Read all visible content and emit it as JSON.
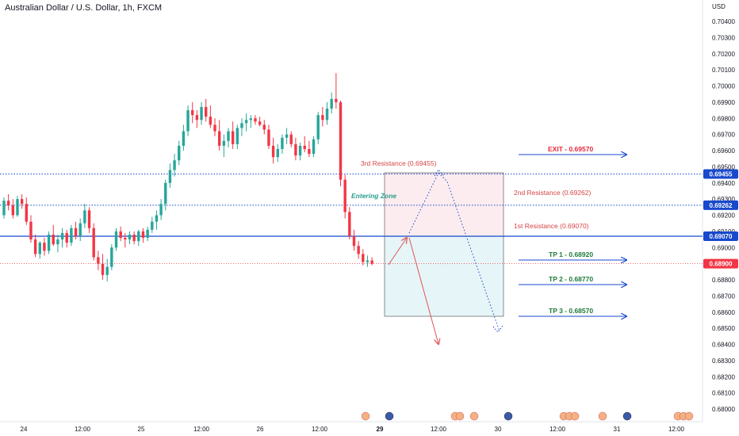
{
  "header": {
    "symbol_title": "Australian Dollar / U.S. Dollar, 1h, FXCM"
  },
  "price_axis": {
    "unit": "USD",
    "ticks": [
      "0.70400",
      "0.70300",
      "0.70200",
      "0.70100",
      "0.70000",
      "0.69900",
      "0.69800",
      "0.69700",
      "0.69600",
      "0.69500",
      "0.69400",
      "0.69300",
      "0.69200",
      "0.69100",
      "0.69000",
      "0.68900",
      "0.68800",
      "0.68700",
      "0.68600",
      "0.68500",
      "0.68400",
      "0.68300",
      "0.68200",
      "0.68100",
      "0.68000"
    ]
  },
  "time_axis": {
    "labels": [
      "24",
      "12:00",
      "25",
      "12:00",
      "26",
      "12:00",
      "29",
      "12:00",
      "30",
      "12:00",
      "31",
      "12:00"
    ]
  },
  "price_tags": [
    {
      "label": "0.69455",
      "value": 0.69455,
      "color": "#1848cc"
    },
    {
      "label": "0.69262",
      "value": 0.69262,
      "color": "#1848cc"
    },
    {
      "label": "0.69070",
      "value": 0.6907,
      "color": "#1848cc"
    },
    {
      "label": "0.68900",
      "value": 0.689,
      "color": "#f23645"
    }
  ],
  "annotations": {
    "third_resistance": "3rd Resistance (0.69455)",
    "second_resistance": "2nd Resistance (0.69262)",
    "first_resistance": "1st Resistance (0.69070)",
    "entering_zone": "Entering Zone",
    "exit": "EXIT - 0.69570",
    "tp1": "TP 1 - 0.68920",
    "tp2": "TP 2 - 0.68770",
    "tp3": "TP 3 - 0.68570"
  },
  "colors": {
    "bull": "#26a69a",
    "bear": "#f23645",
    "line_blue": "#1848cc",
    "exit_red": "#e5283a",
    "tp_green": "#1f7a3a",
    "annotation_red": "#d64545",
    "entering_zone_teal": "#2a9d8f",
    "current_price_line": "#f23645"
  },
  "chart_data": {
    "type": "candlestick",
    "symbol": "Australian Dollar / U.S. Dollar",
    "timeframe": "1h",
    "y_unit": "USD",
    "ylim": [
      0.6796,
      0.705
    ],
    "horizontal_levels": [
      {
        "label": "3rd Resistance",
        "value": 0.69455,
        "style": "dotted"
      },
      {
        "label": "2nd Resistance",
        "value": 0.69262,
        "style": "dotted"
      },
      {
        "label": "1st Resistance",
        "value": 0.6907,
        "style": "solid"
      },
      {
        "label": "Current",
        "value": 0.689,
        "style": "dotted"
      }
    ],
    "targets": [
      {
        "label": "EXIT",
        "value": 0.6957
      },
      {
        "label": "TP 1",
        "value": 0.6892
      },
      {
        "label": "TP 2",
        "value": 0.6877
      },
      {
        "label": "TP 3",
        "value": 0.6857
      }
    ],
    "ohlc": [
      [
        0.692,
        0.6931,
        0.6918,
        0.6929
      ],
      [
        0.6929,
        0.6933,
        0.6923,
        0.6926
      ],
      [
        0.6926,
        0.693,
        0.6918,
        0.692
      ],
      [
        0.692,
        0.6932,
        0.6919,
        0.693
      ],
      [
        0.693,
        0.6933,
        0.6924,
        0.6927
      ],
      [
        0.6927,
        0.6931,
        0.6914,
        0.6916
      ],
      [
        0.6916,
        0.692,
        0.6903,
        0.6905
      ],
      [
        0.6905,
        0.6908,
        0.6894,
        0.6896
      ],
      [
        0.6896,
        0.6904,
        0.6893,
        0.6903
      ],
      [
        0.6903,
        0.6906,
        0.6895,
        0.6898
      ],
      [
        0.6898,
        0.691,
        0.6896,
        0.6908
      ],
      [
        0.6908,
        0.6914,
        0.6901,
        0.6902
      ],
      [
        0.6902,
        0.6908,
        0.6897,
        0.6905
      ],
      [
        0.6905,
        0.6912,
        0.69,
        0.6909
      ],
      [
        0.6909,
        0.6911,
        0.69,
        0.6903
      ],
      [
        0.6903,
        0.6914,
        0.6901,
        0.6912
      ],
      [
        0.6912,
        0.6916,
        0.6905,
        0.6907
      ],
      [
        0.6907,
        0.6918,
        0.6904,
        0.6915
      ],
      [
        0.6915,
        0.6927,
        0.6912,
        0.6923
      ],
      [
        0.6923,
        0.6925,
        0.6909,
        0.6912
      ],
      [
        0.6912,
        0.6915,
        0.6892,
        0.6894
      ],
      [
        0.6894,
        0.6898,
        0.6886,
        0.689
      ],
      [
        0.689,
        0.6896,
        0.688,
        0.6883
      ],
      [
        0.6883,
        0.6893,
        0.6879,
        0.6888
      ],
      [
        0.6888,
        0.6902,
        0.6886,
        0.69
      ],
      [
        0.69,
        0.6912,
        0.6898,
        0.691
      ],
      [
        0.691,
        0.6913,
        0.6904,
        0.6906
      ],
      [
        0.6906,
        0.6909,
        0.69,
        0.6905
      ],
      [
        0.6905,
        0.691,
        0.6902,
        0.6908
      ],
      [
        0.6908,
        0.691,
        0.6902,
        0.6904
      ],
      [
        0.6904,
        0.6911,
        0.6901,
        0.691
      ],
      [
        0.691,
        0.6912,
        0.6903,
        0.6906
      ],
      [
        0.6906,
        0.6913,
        0.6904,
        0.6911
      ],
      [
        0.6911,
        0.6919,
        0.6909,
        0.6916
      ],
      [
        0.6916,
        0.6923,
        0.6911,
        0.692
      ],
      [
        0.692,
        0.693,
        0.6917,
        0.6927
      ],
      [
        0.6927,
        0.6942,
        0.6923,
        0.694
      ],
      [
        0.694,
        0.6952,
        0.6937,
        0.6948
      ],
      [
        0.6948,
        0.6958,
        0.6944,
        0.6954
      ],
      [
        0.6954,
        0.6966,
        0.6951,
        0.6963
      ],
      [
        0.6963,
        0.6976,
        0.696,
        0.6972
      ],
      [
        0.6972,
        0.6988,
        0.6969,
        0.6985
      ],
      [
        0.6985,
        0.699,
        0.6977,
        0.6982
      ],
      [
        0.6982,
        0.6985,
        0.6974,
        0.6979
      ],
      [
        0.6979,
        0.699,
        0.6976,
        0.6987
      ],
      [
        0.6987,
        0.6992,
        0.6978,
        0.6981
      ],
      [
        0.6981,
        0.6988,
        0.6974,
        0.6976
      ],
      [
        0.6976,
        0.698,
        0.6969,
        0.6972
      ],
      [
        0.6972,
        0.6979,
        0.696,
        0.6963
      ],
      [
        0.6963,
        0.697,
        0.6956,
        0.6966
      ],
      [
        0.6966,
        0.6974,
        0.6962,
        0.6972
      ],
      [
        0.6972,
        0.6978,
        0.6961,
        0.6964
      ],
      [
        0.6964,
        0.6976,
        0.6961,
        0.6974
      ],
      [
        0.6974,
        0.698,
        0.6969,
        0.6977
      ],
      [
        0.6977,
        0.6983,
        0.6972,
        0.6979
      ],
      [
        0.6979,
        0.6982,
        0.6974,
        0.698
      ],
      [
        0.698,
        0.6982,
        0.6976,
        0.6978
      ],
      [
        0.6978,
        0.6981,
        0.6975,
        0.6976
      ],
      [
        0.6976,
        0.6979,
        0.697,
        0.6973
      ],
      [
        0.6973,
        0.6976,
        0.6961,
        0.6963
      ],
      [
        0.6963,
        0.6968,
        0.6952,
        0.6956
      ],
      [
        0.6956,
        0.6964,
        0.6953,
        0.6961
      ],
      [
        0.6961,
        0.697,
        0.6958,
        0.6968
      ],
      [
        0.6968,
        0.6974,
        0.6964,
        0.697
      ],
      [
        0.697,
        0.6972,
        0.6962,
        0.6964
      ],
      [
        0.6964,
        0.6968,
        0.6954,
        0.6957
      ],
      [
        0.6957,
        0.6965,
        0.6954,
        0.6963
      ],
      [
        0.6963,
        0.6969,
        0.6959,
        0.6961
      ],
      [
        0.6961,
        0.6966,
        0.6956,
        0.6958
      ],
      [
        0.6958,
        0.6969,
        0.6956,
        0.6967
      ],
      [
        0.6967,
        0.6984,
        0.6964,
        0.6982
      ],
      [
        0.6982,
        0.6987,
        0.6975,
        0.6979
      ],
      [
        0.6979,
        0.699,
        0.6976,
        0.6986
      ],
      [
        0.6986,
        0.6996,
        0.6983,
        0.6992
      ],
      [
        0.6992,
        0.7008,
        0.6986,
        0.699
      ],
      [
        0.699,
        0.6991,
        0.6938,
        0.6942
      ],
      [
        0.6942,
        0.6945,
        0.6918,
        0.6922
      ],
      [
        0.6922,
        0.6925,
        0.6905,
        0.6907
      ],
      [
        0.6907,
        0.6911,
        0.6898,
        0.6901
      ],
      [
        0.6901,
        0.6904,
        0.6893,
        0.6896
      ],
      [
        0.6896,
        0.6899,
        0.6889,
        0.6891
      ],
      [
        0.6891,
        0.6895,
        0.6888,
        0.6892
      ],
      [
        0.6892,
        0.6894,
        0.6889,
        0.689
      ]
    ]
  }
}
